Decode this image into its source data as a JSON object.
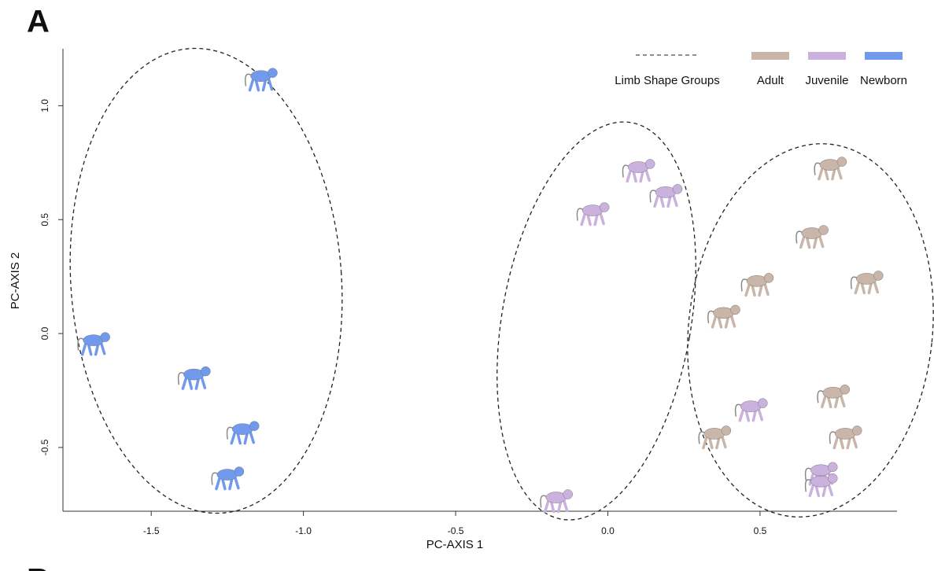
{
  "chart_data": {
    "type": "scatter",
    "panel_label": "A",
    "next_panel_label": "B",
    "x_label": "PC-AXIS 1",
    "y_label": "PC-AXIS 2",
    "group_label": "Limb Shape Groups",
    "xlim": [
      -1.79,
      0.95
    ],
    "ylim": [
      -0.78,
      1.25
    ],
    "xticks": [
      -1.5,
      {
        "value": -1.0,
        "label": "-1.0"
      },
      -0.5,
      {
        "value": 0.0,
        "label": "0.0"
      },
      0.5
    ],
    "yticks": [
      -0.5,
      {
        "value": 0.0,
        "label": "0.0"
      },
      0.5,
      {
        "value": 1.0,
        "label": "1.0"
      }
    ],
    "series": [
      {
        "name": "Adult",
        "color": "#c9b6a8",
        "x": [
          0.73,
          0.67,
          0.49,
          0.85,
          0.38,
          0.74,
          0.35,
          0.78
        ],
        "values": [
          0.73,
          0.43,
          0.22,
          0.23,
          0.08,
          -0.27,
          -0.45,
          -0.45
        ]
      },
      {
        "name": "Juvenile",
        "color": "#cbb2de",
        "x": [
          0.1,
          0.19,
          -0.05,
          -0.17,
          0.47,
          0.7,
          0.7
        ],
        "values": [
          0.72,
          0.61,
          0.53,
          -0.73,
          -0.33,
          -0.61,
          -0.66
        ]
      },
      {
        "name": "Newborn",
        "color": "#7199ee",
        "x": [
          -1.14,
          -1.69,
          -1.36,
          -1.2,
          -1.25
        ],
        "values": [
          1.12,
          -0.04,
          -0.19,
          -0.43,
          -0.63
        ]
      }
    ]
  }
}
